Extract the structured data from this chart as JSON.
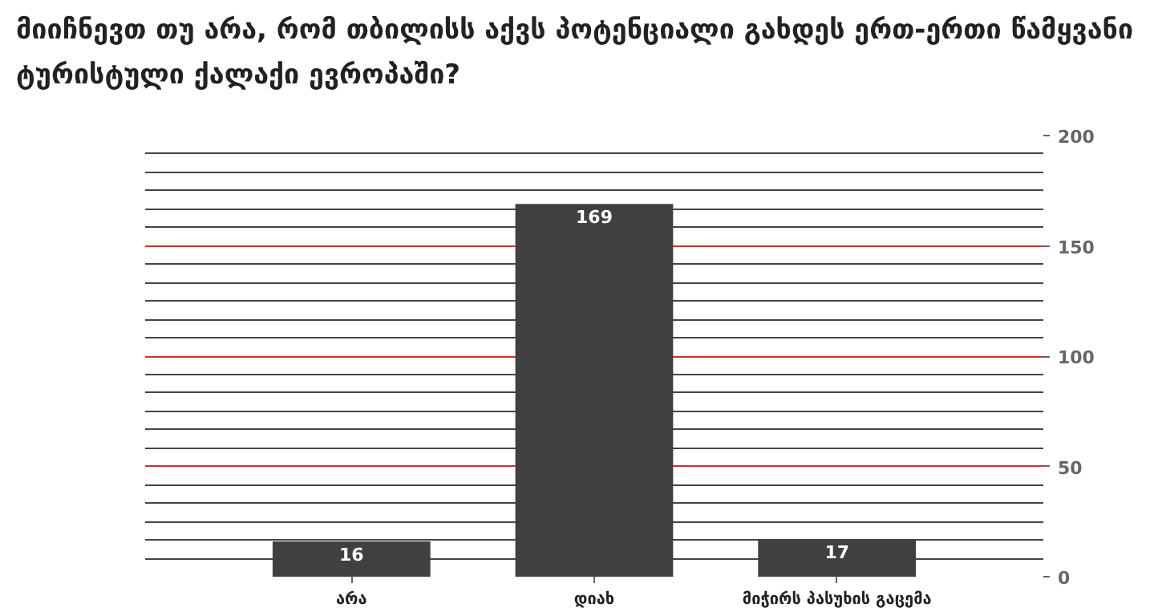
{
  "chart_data": {
    "type": "bar",
    "title": "მიიჩნევთ თუ არა, რომ თბილისს აქვს პოტენციალი გახდეს ერთ-ერთი წამყვანი ტურისტული ქალაქი ევროპაში?",
    "categories": [
      "არა",
      "დიახ",
      "მიჭირს პასუხის გაცემა"
    ],
    "values": [
      16,
      169,
      17
    ],
    "color": "#404040",
    "ylim": [
      0,
      200
    ],
    "yticks": [
      0,
      50,
      100,
      150,
      200
    ],
    "grid": "y",
    "data_labels": true
  }
}
